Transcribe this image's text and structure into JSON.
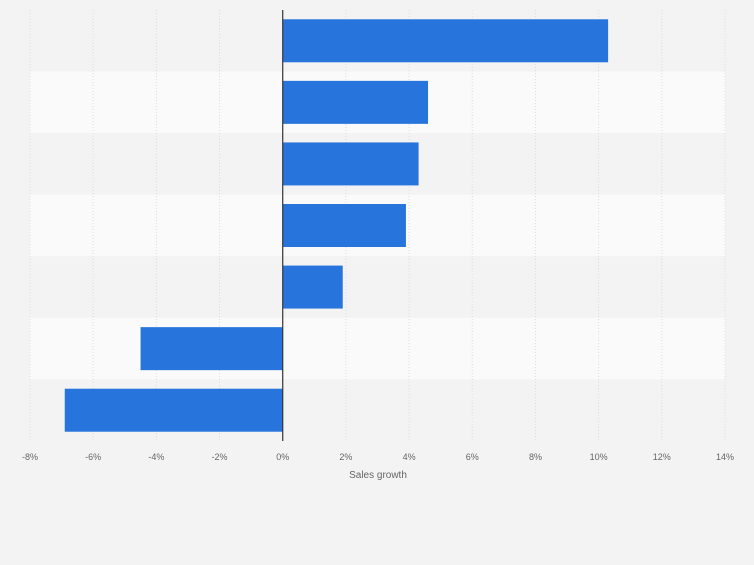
{
  "chart_data": {
    "type": "bar",
    "orientation": "horizontal",
    "categories": [
      "",
      "",
      "",
      "",
      "",
      "",
      ""
    ],
    "values": [
      10.3,
      4.6,
      4.3,
      3.9,
      1.9,
      -4.5,
      -6.9
    ],
    "xlabel": "Sales growth",
    "ylabel": "",
    "xlim": [
      -8,
      14
    ],
    "xticks": [
      -8,
      -6,
      -4,
      -2,
      0,
      2,
      4,
      6,
      8,
      10,
      12,
      14
    ],
    "tick_labels": [
      "-8%",
      "-6%",
      "-4%",
      "-2%",
      "0%",
      "2%",
      "4%",
      "6%",
      "8%",
      "10%",
      "12%",
      "14%"
    ],
    "grid": true,
    "colors": {
      "bar": "#2775dc",
      "background": "#f3f3f3",
      "band_alt": "#fafafa",
      "grid": "#dcdcdc",
      "zero_line": "#333333",
      "tick_text": "#666666"
    }
  }
}
